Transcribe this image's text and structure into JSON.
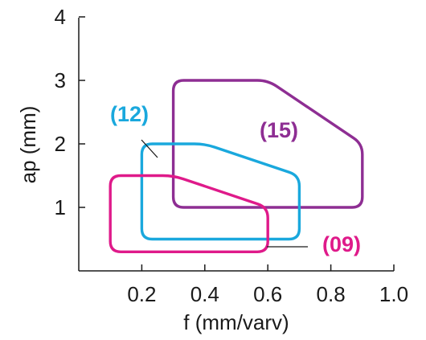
{
  "chart_data": {
    "type": "area",
    "title": "",
    "xlabel": "f (mm/varv)",
    "ylabel": "ap (mm)",
    "xlim": [
      0,
      1.0
    ],
    "ylim": [
      0,
      4
    ],
    "x_ticks": [
      "0.2",
      "0.4",
      "0.6",
      "0.8",
      "1.0"
    ],
    "y_ticks": [
      "1",
      "2",
      "3",
      "4"
    ],
    "grid": false,
    "series": [
      {
        "name": "(15)",
        "color": "#8e2e93",
        "outline": [
          [
            0.3,
            3.0
          ],
          [
            0.6,
            3.0
          ],
          [
            0.9,
            2.0
          ],
          [
            0.9,
            1.0
          ],
          [
            0.3,
            1.0
          ]
        ]
      },
      {
        "name": "(12)",
        "color": "#1aa8dd",
        "outline": [
          [
            0.2,
            2.0
          ],
          [
            0.4,
            2.0
          ],
          [
            0.7,
            1.5
          ],
          [
            0.7,
            0.5
          ],
          [
            0.2,
            0.5
          ]
        ]
      },
      {
        "name": "(09)",
        "color": "#df1a8a",
        "outline": [
          [
            0.1,
            1.5
          ],
          [
            0.3,
            1.5
          ],
          [
            0.6,
            1.0
          ],
          [
            0.6,
            0.3
          ],
          [
            0.1,
            0.3
          ]
        ]
      }
    ]
  }
}
